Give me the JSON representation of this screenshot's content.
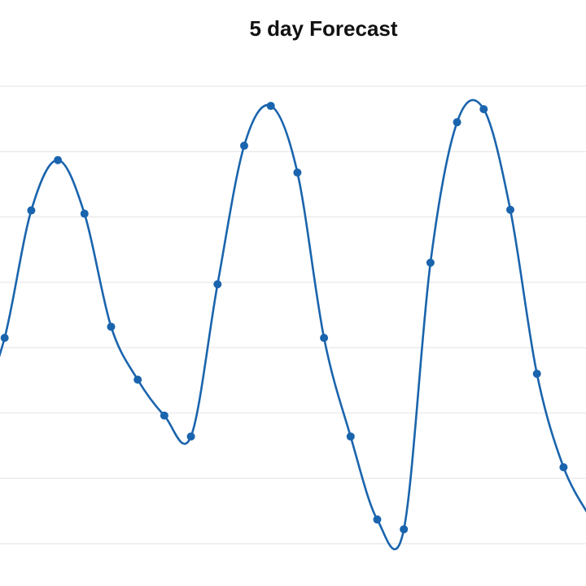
{
  "chart_data": {
    "type": "line",
    "title": "5 day Forecast",
    "xlabel": "",
    "ylabel": "",
    "grid": true,
    "ylim": [
      0,
      7
    ],
    "series": [
      {
        "color": "#1a64ad",
        "values": [
          2.0,
          3.15,
          5.1,
          5.87,
          5.05,
          3.32,
          2.51,
          1.96,
          1.64,
          3.97,
          6.09,
          6.7,
          5.68,
          3.15,
          1.64,
          0.37,
          0.22,
          4.3,
          6.45,
          6.65,
          5.11,
          2.6,
          1.17,
          0.4
        ]
      }
    ]
  }
}
